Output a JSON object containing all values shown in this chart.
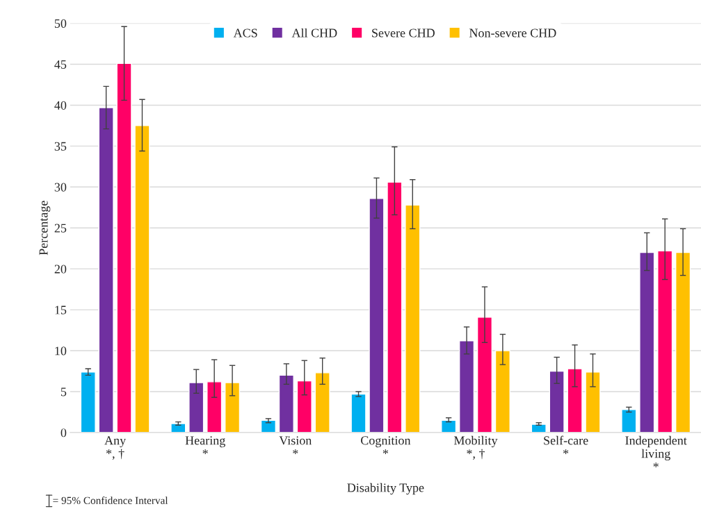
{
  "chart_data": {
    "type": "bar",
    "xlabel": "Disability Type",
    "ylabel": "Percentage",
    "categories": [
      "Any\n*, †",
      "Hearing\n*",
      "Vision\n*",
      "Cognition\n*",
      "Mobility\n*, †",
      "Self-care\n*",
      "Independent\nliving\n*"
    ],
    "series": [
      {
        "name": "ACS",
        "color": "#00b0f0",
        "values": [
          7.4,
          1.1,
          1.5,
          4.7,
          1.5,
          1.0,
          2.8
        ],
        "errors": [
          [
            7.0,
            7.8
          ],
          [
            0.9,
            1.3
          ],
          [
            1.2,
            1.7
          ],
          [
            4.4,
            5.0
          ],
          [
            1.3,
            1.8
          ],
          [
            0.9,
            1.2
          ],
          [
            2.5,
            3.1
          ]
        ]
      },
      {
        "name": "All CHD",
        "color": "#7030a0",
        "values": [
          39.7,
          6.1,
          7.0,
          28.6,
          11.2,
          7.5,
          22.0
        ],
        "errors": [
          [
            37.1,
            42.3
          ],
          [
            4.8,
            7.7
          ],
          [
            5.9,
            8.4
          ],
          [
            26.2,
            31.1
          ],
          [
            9.6,
            12.9
          ],
          [
            6.0,
            9.2
          ],
          [
            19.8,
            24.4
          ]
        ]
      },
      {
        "name": "Severe CHD",
        "color": "#ff0066",
        "values": [
          45.1,
          6.2,
          6.3,
          30.6,
          14.1,
          7.8,
          22.2
        ],
        "errors": [
          [
            40.6,
            49.6
          ],
          [
            4.3,
            8.9
          ],
          [
            4.6,
            8.8
          ],
          [
            26.6,
            34.9
          ],
          [
            11.0,
            17.8
          ],
          [
            5.6,
            10.7
          ],
          [
            18.7,
            26.1
          ]
        ]
      },
      {
        "name": "Non-severe CHD",
        "color": "#ffc000",
        "values": [
          37.5,
          6.1,
          7.3,
          27.8,
          10.0,
          7.4,
          22.0
        ],
        "errors": [
          [
            34.4,
            40.7
          ],
          [
            4.5,
            8.2
          ],
          [
            5.9,
            9.1
          ],
          [
            24.9,
            30.9
          ],
          [
            8.3,
            12.0
          ],
          [
            5.6,
            9.6
          ],
          [
            19.2,
            24.9
          ]
        ]
      }
    ],
    "ylim": [
      0,
      50
    ],
    "yticks": [
      0,
      5,
      10,
      15,
      20,
      25,
      30,
      35,
      40,
      45,
      50
    ],
    "grid": "y",
    "legend": "top",
    "annotations": [
      "= 95% Confidence Interval"
    ]
  }
}
